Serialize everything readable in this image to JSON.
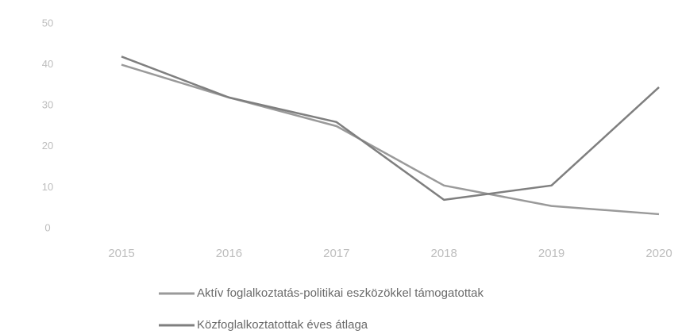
{
  "chart_data": {
    "type": "line",
    "categories": [
      "2015",
      "2016",
      "2017",
      "2018",
      "2019",
      "2020"
    ],
    "series": [
      {
        "name": "Aktív foglalkoztatás-politikai eszközökkel támogatottak",
        "color": "#9a9a9a",
        "values": [
          40,
          32,
          25,
          10.5,
          5.5,
          3.5
        ]
      },
      {
        "name": "Közfoglalkoztatottak éves átlaga",
        "color": "#7f7f7f",
        "values": [
          42,
          32,
          26,
          7,
          10.5,
          34.5
        ]
      }
    ],
    "ylim": [
      0,
      50
    ],
    "yticks": [
      0,
      10,
      20,
      30,
      40,
      50
    ],
    "grid": false
  }
}
